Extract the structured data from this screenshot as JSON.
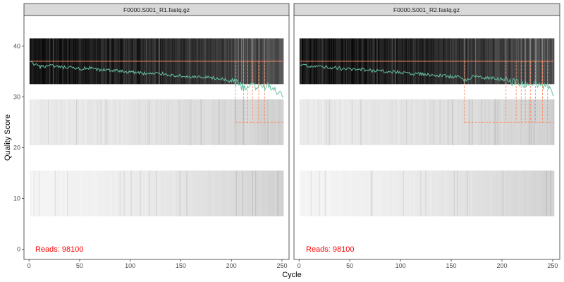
{
  "chart_data": {
    "type": "heatmap",
    "xlabel": "Cycle",
    "ylabel": "Quality Score",
    "xlim": [
      -5,
      257
    ],
    "ylim": [
      -2,
      46
    ],
    "x_ticks": [
      "0",
      "50",
      "100",
      "150",
      "200",
      "250"
    ],
    "y_ticks": [
      "0",
      "10",
      "20",
      "30",
      "40"
    ],
    "colors": {
      "mean_line": "#66C2A5",
      "reference_line": "#FC8D62",
      "reads_text": "#FF0000",
      "strip_fill": "#D9D9D9",
      "panel_border": "#333333"
    },
    "panels": [
      {
        "strip": "F0000.S001_R1.fastq.gz",
        "reads_label": "Reads:  98100",
        "reference_q": 37,
        "mean_quality": {
          "cycles": [
            1,
            10,
            20,
            30,
            40,
            50,
            60,
            70,
            80,
            90,
            100,
            110,
            120,
            130,
            140,
            150,
            160,
            170,
            180,
            190,
            200,
            205,
            210,
            215,
            220,
            225,
            230,
            235,
            240,
            245,
            250,
            251
          ],
          "values": [
            36.8,
            35.9,
            36.1,
            35.8,
            35.7,
            35.5,
            35.6,
            35.2,
            35.3,
            35.0,
            34.9,
            34.7,
            34.5,
            34.6,
            34.3,
            34.1,
            33.9,
            33.8,
            33.7,
            33.5,
            33.0,
            32.8,
            32.0,
            31.5,
            32.5,
            31.8,
            32.3,
            31.9,
            32.1,
            31.2,
            30.5,
            29.2
          ]
        },
        "dashed_cycles": [
          204,
          212,
          216,
          221,
          227,
          233
        ]
      },
      {
        "strip": "F0000.S001_R2.fastq.gz",
        "reads_label": "Reads:  98100",
        "reference_q": 37,
        "mean_quality": {
          "cycles": [
            1,
            10,
            20,
            30,
            40,
            50,
            60,
            70,
            80,
            90,
            100,
            110,
            120,
            130,
            140,
            150,
            160,
            163,
            170,
            180,
            190,
            200,
            205,
            210,
            215,
            220,
            225,
            230,
            235,
            240,
            245,
            250,
            251
          ],
          "values": [
            36.2,
            36.0,
            35.9,
            35.8,
            35.6,
            35.4,
            35.5,
            35.2,
            35.0,
            34.9,
            34.8,
            34.6,
            34.5,
            34.3,
            34.2,
            34.0,
            33.9,
            33.0,
            34.0,
            33.8,
            33.7,
            33.5,
            33.2,
            33.0,
            32.7,
            32.4,
            32.8,
            32.2,
            32.5,
            31.9,
            32.3,
            31.0,
            29.4
          ]
        },
        "dashed_cycles": [
          163,
          204,
          214,
          219,
          223,
          228,
          233,
          240,
          245
        ]
      }
    ]
  }
}
